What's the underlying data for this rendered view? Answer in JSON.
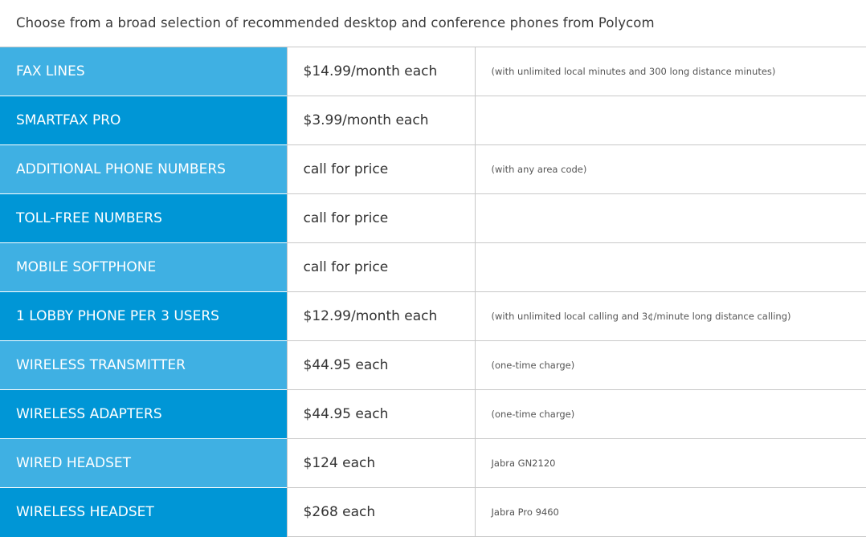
{
  "intro": "Choose from a broad selection of recommended desktop and conference phones from Polycom",
  "colors": {
    "row_light": "#3FB0E3",
    "row_dark": "#0096D6"
  },
  "rows": [
    {
      "name": "FAX LINES",
      "price": "$14.99/month each",
      "note": "(with unlimited local minutes and 300 long distance minutes)"
    },
    {
      "name": "SMARTFAX PRO",
      "price": "$3.99/month each",
      "note": ""
    },
    {
      "name": "ADDITIONAL PHONE NUMBERS",
      "price": "call for price",
      "note": "(with any area code)"
    },
    {
      "name": "TOLL-FREE NUMBERS",
      "price": "call for price",
      "note": ""
    },
    {
      "name": "MOBILE SOFTPHONE",
      "price": "call for price",
      "note": ""
    },
    {
      "name": "1 LOBBY PHONE PER 3 USERS",
      "price": "$12.99/month each",
      "note": "(with unlimited local calling and 3¢/minute long distance calling)"
    },
    {
      "name": "WIRELESS TRANSMITTER",
      "price": "$44.95 each",
      "note": "(one-time charge)"
    },
    {
      "name": "WIRELESS ADAPTERS",
      "price": "$44.95 each",
      "note": "(one-time charge)"
    },
    {
      "name": "WIRED HEADSET",
      "price": "$124 each",
      "note": "Jabra GN2120"
    },
    {
      "name": "WIRELESS HEADSET",
      "price": "$268 each",
      "note": "Jabra Pro 9460"
    }
  ]
}
